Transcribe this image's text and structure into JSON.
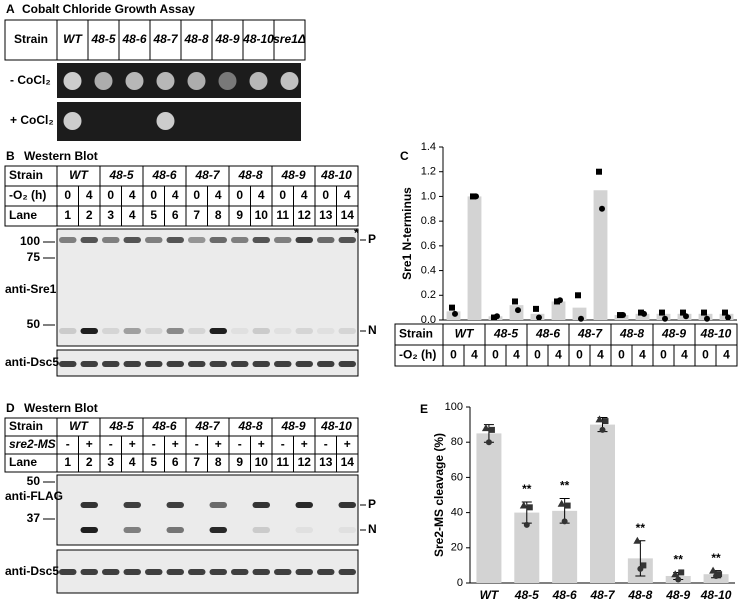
{
  "panel_a": {
    "label": "A",
    "title": "Cobalt Chloride Growth Assay",
    "header": [
      "Strain",
      "WT",
      "48-5",
      "48-6",
      "48-7",
      "48-8",
      "48-9",
      "48-10",
      "sre1Δ"
    ],
    "rows": [
      "- CoCl₂",
      "+ CoCl₂"
    ]
  },
  "panel_b": {
    "label": "B",
    "title": "Western Blot",
    "row_labels": [
      "Strain",
      "-O₂ (h)",
      "Lane"
    ],
    "strains": [
      "WT",
      "48-5",
      "48-6",
      "48-7",
      "48-8",
      "48-9",
      "48-10"
    ],
    "conditions": [
      "0",
      "4",
      "0",
      "4",
      "0",
      "4",
      "0",
      "4",
      "0",
      "4",
      "0",
      "4",
      "0",
      "4"
    ],
    "lanes": [
      "1",
      "2",
      "3",
      "4",
      "5",
      "6",
      "7",
      "8",
      "9",
      "10",
      "11",
      "12",
      "13",
      "14"
    ],
    "markers": [
      "100",
      "75",
      "50"
    ],
    "antibodies": [
      "anti-Sre1",
      "anti-Dsc5"
    ],
    "band_labels": [
      "*",
      "P",
      "N"
    ]
  },
  "panel_d": {
    "label": "D",
    "title": "Western Blot",
    "row_labels": [
      "Strain",
      "sre2-MS",
      "Lane"
    ],
    "strains": [
      "WT",
      "48-5",
      "48-6",
      "48-7",
      "48-8",
      "48-9",
      "48-10"
    ],
    "conditions": [
      "-",
      "+",
      "-",
      "+",
      "-",
      "+",
      "-",
      "+",
      "-",
      "+",
      "-",
      "+",
      "-",
      "+"
    ],
    "lanes": [
      "1",
      "2",
      "3",
      "4",
      "5",
      "6",
      "7",
      "8",
      "9",
      "10",
      "11",
      "12",
      "13",
      "14"
    ],
    "markers": [
      "50",
      "37"
    ],
    "antibodies": [
      "anti-FLAG",
      "anti-Dsc5"
    ],
    "band_labels": [
      "P",
      "N"
    ]
  },
  "chart_data": [
    {
      "type": "bar",
      "label": "C",
      "ylabel": "Sre1 N-terminus",
      "row_labels": [
        "Strain",
        "-O₂ (h)"
      ],
      "groups": [
        "WT",
        "48-5",
        "48-6",
        "48-7",
        "48-8",
        "48-9",
        "48-10"
      ],
      "categories": [
        "0",
        "4",
        "0",
        "4",
        "0",
        "4",
        "0",
        "4",
        "0",
        "4",
        "0",
        "4",
        "0",
        "4"
      ],
      "series": [
        {
          "color": "#d3d3d3",
          "values": [
            0.07,
            1.0,
            0.03,
            0.12,
            0.05,
            0.15,
            0.1,
            1.05,
            0.04,
            0.05,
            0.05,
            0.05,
            0.05,
            0.05
          ]
        },
        {
          "marker": "square",
          "color": "#000000",
          "values": [
            0.1,
            1.0,
            0.02,
            0.15,
            0.09,
            0.15,
            0.2,
            1.2,
            0.04,
            0.06,
            0.06,
            0.06,
            0.06,
            0.06
          ]
        },
        {
          "marker": "circle",
          "color": "#000000",
          "values": [
            0.05,
            1.0,
            0.03,
            0.08,
            0.02,
            0.16,
            0.01,
            0.9,
            0.04,
            0.05,
            0.01,
            0.03,
            0.01,
            0.02
          ]
        }
      ],
      "ylim": [
        0,
        1.4
      ],
      "yticks": [
        {
          "value": 0,
          "label": "0.0"
        },
        0.2,
        0.4,
        0.6,
        0.8,
        {
          "value": 1,
          "label": "1.0"
        },
        1.2,
        1.4
      ]
    },
    {
      "type": "bar",
      "label": "E",
      "ylabel": "Sre2-MS cleavage (%)",
      "categories": [
        "WT",
        "48-5",
        "48-6",
        "48-7",
        "48-8",
        "48-9",
        "48-10"
      ],
      "annotations": [
        null,
        "**",
        "**",
        null,
        "**",
        "**",
        "**"
      ],
      "series": [
        {
          "color": "#d3d3d3",
          "values": [
            85,
            40,
            41,
            90,
            14,
            4,
            5
          ],
          "errors": [
            5,
            6,
            7,
            4,
            10,
            2,
            2
          ]
        },
        {
          "marker": "triangle",
          "color": "#333333",
          "values": [
            88,
            44,
            45,
            93,
            24,
            5,
            7
          ]
        },
        {
          "marker": "circle",
          "color": "#333333",
          "values": [
            80,
            33,
            35,
            87,
            8,
            2,
            4
          ]
        },
        {
          "marker": "square",
          "color": "#333333",
          "values": [
            87,
            43,
            44,
            92,
            10,
            6,
            5
          ]
        }
      ],
      "ylim": [
        0,
        100
      ],
      "yticks": [
        0,
        20,
        40,
        60,
        80,
        100
      ]
    }
  ]
}
